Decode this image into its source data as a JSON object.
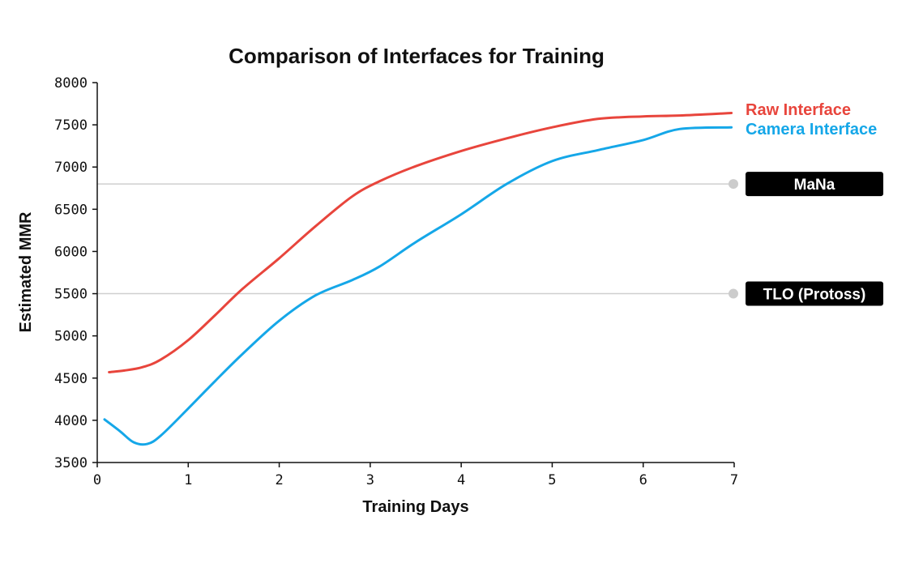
{
  "chart_data": {
    "type": "line",
    "title": "Comparison of Interfaces for Training",
    "xlabel": "Training Days",
    "ylabel": "Estimated MMR",
    "xlim": [
      0,
      7
    ],
    "ylim": [
      3500,
      8000
    ],
    "xticks": [
      0,
      1,
      2,
      3,
      4,
      5,
      6,
      7
    ],
    "yticks": [
      3500,
      4000,
      4500,
      5000,
      5500,
      6000,
      6500,
      7000,
      7500,
      8000
    ],
    "series": [
      {
        "name": "Raw Interface",
        "color": "#e8453c",
        "x": [
          0.13,
          0.3,
          0.5,
          0.7,
          1.0,
          1.3,
          1.6,
          2.0,
          2.4,
          2.8,
          3.1,
          3.5,
          4.0,
          4.5,
          5.0,
          5.5,
          6.0,
          6.4,
          6.97
        ],
        "y": [
          4570,
          4590,
          4630,
          4720,
          4950,
          5250,
          5560,
          5920,
          6300,
          6650,
          6830,
          7010,
          7190,
          7340,
          7470,
          7570,
          7600,
          7610,
          7640
        ]
      },
      {
        "name": "Camera Interface",
        "color": "#15a7e8",
        "x": [
          0.08,
          0.25,
          0.4,
          0.55,
          0.7,
          1.0,
          1.3,
          1.6,
          2.0,
          2.4,
          2.8,
          3.1,
          3.5,
          4.0,
          4.5,
          5.0,
          5.5,
          6.0,
          6.4,
          6.97
        ],
        "y": [
          4010,
          3870,
          3740,
          3720,
          3820,
          4140,
          4470,
          4790,
          5180,
          5480,
          5660,
          5820,
          6110,
          6440,
          6800,
          7070,
          7200,
          7320,
          7450,
          7470
        ]
      }
    ],
    "reference_lines": [
      {
        "name": "MaNa",
        "y": 6800
      },
      {
        "name": "TLO (Protoss)",
        "y": 5500
      }
    ],
    "grid": false,
    "legend": "direct labels at right end of lines"
  }
}
